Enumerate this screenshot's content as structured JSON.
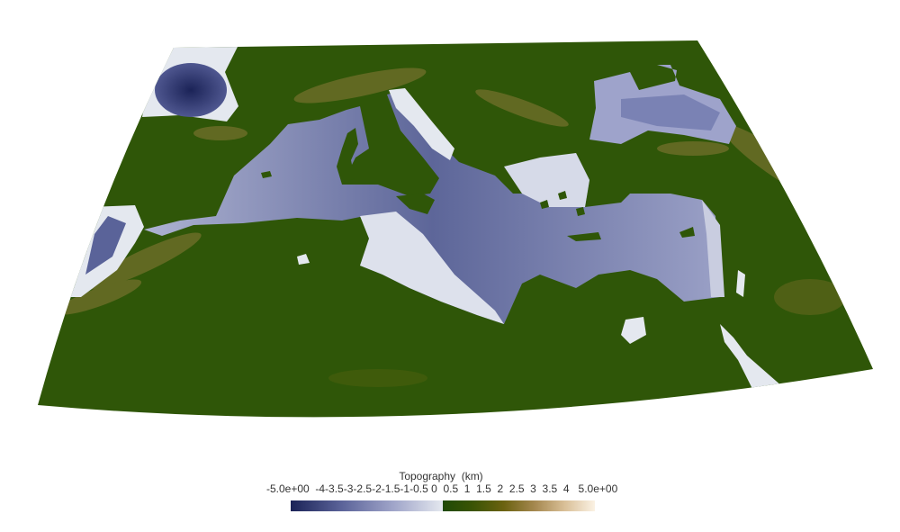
{
  "map": {
    "title": "",
    "region": "Mediterranean Sea",
    "projection": "conic"
  },
  "legend": {
    "title": "Topography  (km)",
    "tick_labels": [
      "-5.0e+00",
      "-4",
      "-3.5",
      "-3",
      "-2.5",
      "-2",
      "-1.5",
      "-1",
      "-0.5",
      "0",
      "0.5",
      "1",
      "1.5",
      "2",
      "2.5",
      "3",
      "3.5",
      "4",
      "5.0e+00"
    ],
    "ticks_text": "-5.0e+00  -4-3.5-3-2.5-2-1.5-1-0.5 0  0.5  1  1.5  2  2.5  3  3.5  4   5.0e+00",
    "range": [
      -5.0,
      5.0
    ],
    "colors": {
      "deep_sea": "#1b2357",
      "shallow_sea": "#e4e8ef",
      "lowland": "#2a5006",
      "highland": "#b79a63",
      "peak": "#fbf2e4"
    }
  }
}
